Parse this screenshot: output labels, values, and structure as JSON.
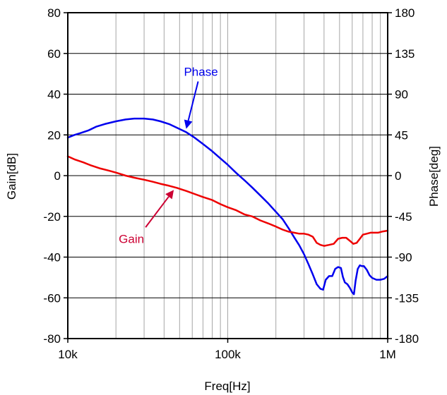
{
  "chart_data": {
    "type": "line",
    "title": "",
    "xlabel": "Freq[Hz]",
    "ylabel": "Gain[dB]",
    "y2label": "Phase[deg]",
    "x_scale": "log",
    "xlim": [
      10000,
      1000000
    ],
    "ylim": [
      -80,
      80
    ],
    "y2lim": [
      -180,
      180
    ],
    "x_ticks": [
      {
        "value": 10000,
        "label": "10k"
      },
      {
        "value": 100000,
        "label": "100k"
      },
      {
        "value": 1000000,
        "label": "1M"
      }
    ],
    "y_ticks": [
      {
        "value": 80,
        "label": "80"
      },
      {
        "value": 60,
        "label": "60"
      },
      {
        "value": 40,
        "label": "40"
      },
      {
        "value": 20,
        "label": "20"
      },
      {
        "value": 0,
        "label": "0"
      },
      {
        "value": -20,
        "label": "-20"
      },
      {
        "value": -40,
        "label": "-40"
      },
      {
        "value": -60,
        "label": "-60"
      },
      {
        "value": -80,
        "label": "-80"
      }
    ],
    "y2_ticks": [
      {
        "value": 180,
        "label": "180"
      },
      {
        "value": 135,
        "label": "135"
      },
      {
        "value": 90,
        "label": "90"
      },
      {
        "value": 45,
        "label": "45"
      },
      {
        "value": 0,
        "label": "0"
      },
      {
        "value": -45,
        "label": "-45"
      },
      {
        "value": -90,
        "label": "-90"
      },
      {
        "value": -135,
        "label": "-135"
      },
      {
        "value": -180,
        "label": "-180"
      }
    ],
    "grid": {
      "x_minor": true,
      "y_major": true
    },
    "series": [
      {
        "name": "Phase",
        "axis": "right",
        "color": "#0000ee",
        "x": [
          10000,
          11000,
          12000,
          13500,
          15000,
          17000,
          20000,
          23000,
          26000,
          30000,
          34000,
          38000,
          43000,
          48000,
          55000,
          62000,
          70000,
          80000,
          90000,
          100000,
          113000,
          127000,
          142000,
          160000,
          180000,
          200000,
          220000,
          240000,
          260000,
          280000,
          300000,
          320000,
          340000,
          360000,
          380000,
          395000,
          410000,
          430000,
          450000,
          470000,
          490000,
          510000,
          525000,
          540000,
          560000,
          580000,
          600000,
          615000,
          630000,
          650000,
          670000,
          690000,
          710000,
          740000,
          770000,
          800000,
          850000,
          900000,
          950000,
          1000000
        ],
        "y": [
          42,
          45,
          47,
          50,
          54,
          57,
          60,
          62,
          63,
          63,
          62,
          60,
          57,
          53,
          48,
          42,
          35,
          27,
          19,
          12,
          3,
          -5,
          -13,
          -22,
          -31,
          -40,
          -48,
          -58,
          -68,
          -77,
          -87,
          -98,
          -109,
          -120,
          -125,
          -126,
          -115,
          -111,
          -111,
          -103,
          -101,
          -102,
          -112,
          -118,
          -120,
          -124,
          -129,
          -131,
          -116,
          -103,
          -99,
          -100,
          -100,
          -104,
          -110,
          -113,
          -115,
          -115,
          -114,
          -111
        ]
      },
      {
        "name": "Gain",
        "axis": "left",
        "color": "#ee0000",
        "x": [
          10000,
          11000,
          12500,
          14000,
          16000,
          18000,
          20000,
          23000,
          26000,
          30000,
          34000,
          38000,
          43000,
          48000,
          55000,
          62000,
          70000,
          80000,
          90000,
          100000,
          113000,
          127000,
          142000,
          160000,
          180000,
          200000,
          220000,
          240000,
          260000,
          280000,
          300000,
          320000,
          340000,
          360000,
          380000,
          400000,
          430000,
          460000,
          490000,
          520000,
          550000,
          580000,
          610000,
          640000,
          670000,
          700000,
          740000,
          780000,
          820000,
          870000,
          920000,
          1000000
        ],
        "y": [
          9.5,
          8,
          6.5,
          5,
          3.5,
          2.5,
          1.5,
          0,
          -1,
          -2,
          -3,
          -4,
          -5,
          -6,
          -7.5,
          -9,
          -10.5,
          -12,
          -14,
          -15.5,
          -17,
          -19,
          -20,
          -22,
          -23.5,
          -25,
          -26.5,
          -27.5,
          -28,
          -28.5,
          -28.5,
          -29,
          -30,
          -33,
          -34,
          -34.5,
          -34,
          -33.5,
          -31,
          -30.5,
          -30.5,
          -32,
          -33.5,
          -33,
          -31,
          -29,
          -28.5,
          -28,
          -28,
          -28,
          -27.5,
          -27
        ]
      }
    ],
    "annotations": [
      {
        "text": "Phase",
        "color": "#0000ee",
        "x": 68000,
        "y": 49,
        "arrow_to_x": 55000,
        "arrow_to_y": 23
      },
      {
        "text": "Gain",
        "color": "#cc0033",
        "x": 25000,
        "y": -33,
        "arrow_to_x": 46000,
        "arrow_to_y": -7
      }
    ]
  }
}
